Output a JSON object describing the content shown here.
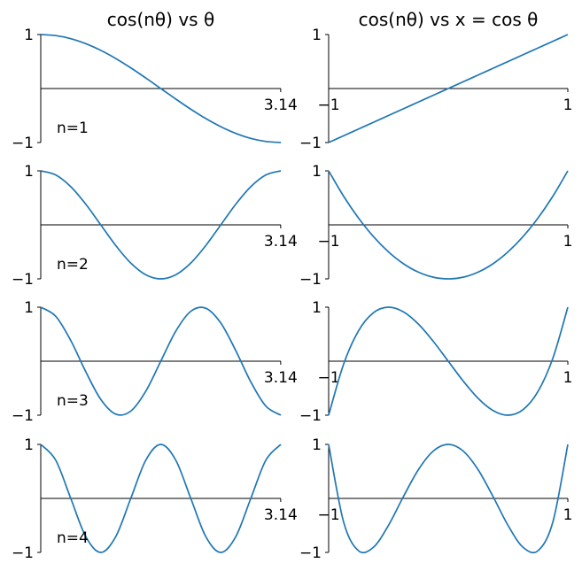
{
  "chart_data": [
    {
      "type": "line",
      "title": "cos(nθ) vs θ",
      "annotation": "n=1",
      "x": [
        0,
        0.19635,
        0.3927,
        0.58905,
        0.7854,
        0.98175,
        1.1781,
        1.37445,
        1.5708,
        1.76715,
        1.9635,
        2.15985,
        2.3562,
        2.55255,
        2.7489,
        2.94525,
        3.14159
      ],
      "series": [
        {
          "color": "#1f77b4",
          "values": [
            1,
            0.981,
            0.924,
            0.831,
            0.707,
            0.556,
            0.383,
            0.195,
            0,
            -0.195,
            -0.383,
            -0.556,
            -0.707,
            -0.831,
            -0.924,
            -0.981,
            -1
          ]
        }
      ],
      "xlim": [
        0,
        3.14159
      ],
      "xticks": [
        3.14
      ],
      "ylim": [
        -1,
        1
      ],
      "yticks": [
        {
          "value": -1,
          "label": "−1"
        },
        1
      ]
    },
    {
      "type": "line",
      "title": "cos(nθ) vs x = cos θ",
      "x": [
        -1,
        -0.875,
        -0.75,
        -0.625,
        -0.5,
        -0.375,
        -0.25,
        -0.125,
        0,
        0.125,
        0.25,
        0.375,
        0.5,
        0.625,
        0.75,
        0.875,
        1
      ],
      "series": [
        {
          "color": "#1f77b4",
          "values": [
            -1,
            -0.875,
            -0.75,
            -0.625,
            -0.5,
            -0.375,
            -0.25,
            -0.125,
            0,
            0.125,
            0.25,
            0.375,
            0.5,
            0.625,
            0.75,
            0.875,
            1
          ]
        }
      ],
      "xlim": [
        -1,
        1
      ],
      "xticks": [
        {
          "value": -1,
          "label": "−1"
        },
        1
      ],
      "ylim": [
        -1,
        1
      ],
      "yticks": [
        {
          "value": -1,
          "label": "−1"
        },
        1
      ]
    },
    {
      "type": "line",
      "annotation": "n=2",
      "x": [
        0,
        0.19635,
        0.3927,
        0.58905,
        0.7854,
        0.98175,
        1.1781,
        1.37445,
        1.5708,
        1.76715,
        1.9635,
        2.15985,
        2.3562,
        2.55255,
        2.7489,
        2.94525,
        3.14159
      ],
      "series": [
        {
          "color": "#1f77b4",
          "values": [
            1,
            0.924,
            0.707,
            0.383,
            0,
            -0.383,
            -0.707,
            -0.924,
            -1,
            -0.924,
            -0.707,
            -0.383,
            0,
            0.383,
            0.707,
            0.924,
            1
          ]
        }
      ],
      "xlim": [
        0,
        3.14159
      ],
      "xticks": [
        3.14
      ],
      "ylim": [
        -1,
        1
      ],
      "yticks": [
        {
          "value": -1,
          "label": "−1"
        },
        1
      ]
    },
    {
      "type": "line",
      "x": [
        -1,
        -0.875,
        -0.75,
        -0.625,
        -0.5,
        -0.375,
        -0.25,
        -0.125,
        0,
        0.125,
        0.25,
        0.375,
        0.5,
        0.625,
        0.75,
        0.875,
        1
      ],
      "series": [
        {
          "color": "#1f77b4",
          "values": [
            1,
            0.531,
            0.125,
            -0.219,
            -0.5,
            -0.719,
            -0.875,
            -0.969,
            -1,
            -0.969,
            -0.875,
            -0.719,
            -0.5,
            -0.219,
            0.125,
            0.531,
            1
          ]
        }
      ],
      "xlim": [
        -1,
        1
      ],
      "xticks": [
        {
          "value": -1,
          "label": "−1"
        },
        1
      ],
      "ylim": [
        -1,
        1
      ],
      "yticks": [
        {
          "value": -1,
          "label": "−1"
        },
        1
      ]
    },
    {
      "type": "line",
      "annotation": "n=3",
      "x": [
        0,
        0.19635,
        0.3927,
        0.58905,
        0.7854,
        0.98175,
        1.1781,
        1.37445,
        1.5708,
        1.76715,
        1.9635,
        2.15985,
        2.3562,
        2.55255,
        2.7489,
        2.94525,
        3.14159
      ],
      "series": [
        {
          "color": "#1f77b4",
          "values": [
            1,
            0.831,
            0.383,
            -0.195,
            -0.707,
            -0.981,
            -0.924,
            -0.556,
            0,
            0.556,
            0.924,
            0.981,
            0.707,
            0.195,
            -0.383,
            -0.831,
            -1
          ]
        }
      ],
      "xlim": [
        0,
        3.14159
      ],
      "xticks": [
        3.14
      ],
      "ylim": [
        -1,
        1
      ],
      "yticks": [
        {
          "value": -1,
          "label": "−1"
        },
        1
      ]
    },
    {
      "type": "line",
      "x": [
        -1,
        -0.875,
        -0.75,
        -0.625,
        -0.5,
        -0.375,
        -0.25,
        -0.125,
        0,
        0.125,
        0.25,
        0.375,
        0.5,
        0.625,
        0.75,
        0.875,
        1
      ],
      "series": [
        {
          "color": "#1f77b4",
          "values": [
            -1,
            -0.055,
            0.563,
            0.898,
            1,
            0.914,
            0.688,
            0.367,
            0,
            -0.367,
            -0.688,
            -0.914,
            -1,
            -0.898,
            -0.563,
            0.055,
            1
          ]
        }
      ],
      "xlim": [
        -1,
        1
      ],
      "xticks": [
        {
          "value": -1,
          "label": "−1"
        },
        1
      ],
      "ylim": [
        -1,
        1
      ],
      "yticks": [
        {
          "value": -1,
          "label": "−1"
        },
        1
      ]
    },
    {
      "type": "line",
      "annotation": "n=4",
      "x": [
        0,
        0.19635,
        0.3927,
        0.58905,
        0.7854,
        0.98175,
        1.1781,
        1.37445,
        1.5708,
        1.76715,
        1.9635,
        2.15985,
        2.3562,
        2.55255,
        2.7489,
        2.94525,
        3.14159
      ],
      "series": [
        {
          "color": "#1f77b4",
          "values": [
            1,
            0.707,
            0,
            -0.707,
            -1,
            -0.707,
            0,
            0.707,
            1,
            0.707,
            0,
            -0.707,
            -1,
            -0.707,
            0,
            0.707,
            1
          ]
        }
      ],
      "xlim": [
        0,
        3.14159
      ],
      "xticks": [
        3.14
      ],
      "ylim": [
        -1,
        1
      ],
      "yticks": [
        {
          "value": -1,
          "label": "−1"
        },
        1
      ]
    },
    {
      "type": "line",
      "x": [
        -1,
        -0.875,
        -0.75,
        -0.625,
        -0.5,
        -0.375,
        -0.25,
        -0.125,
        0,
        0.125,
        0.25,
        0.375,
        0.5,
        0.625,
        0.75,
        0.875,
        1
      ],
      "series": [
        {
          "color": "#1f77b4",
          "values": [
            1,
            -0.436,
            -0.969,
            -0.904,
            -0.5,
            0.033,
            0.531,
            0.877,
            1,
            0.877,
            0.531,
            0.033,
            -0.5,
            -0.904,
            -0.969,
            -0.436,
            1
          ]
        }
      ],
      "xlim": [
        -1,
        1
      ],
      "xticks": [
        {
          "value": -1,
          "label": "−1"
        },
        1
      ],
      "ylim": [
        -1,
        1
      ],
      "yticks": [
        {
          "value": -1,
          "label": "−1"
        },
        1
      ]
    }
  ]
}
